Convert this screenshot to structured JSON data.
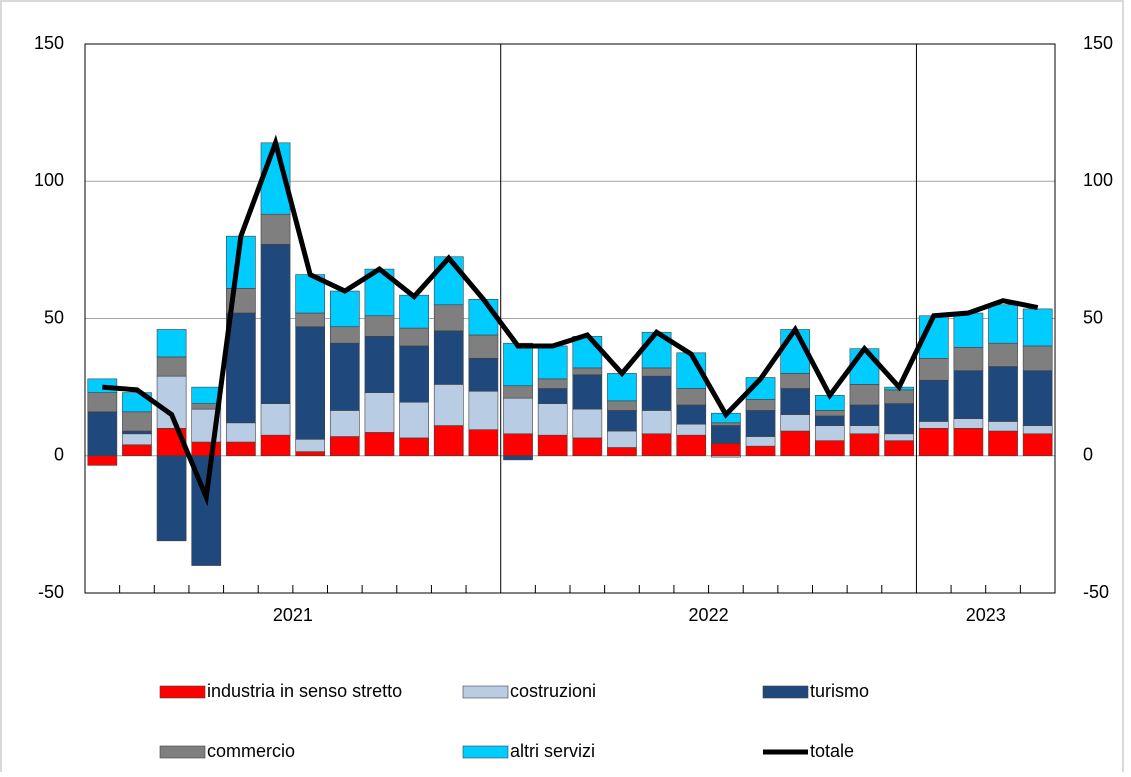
{
  "chart_data": {
    "type": "bar",
    "stacked": true,
    "categories": [
      "2021",
      null,
      null,
      null,
      null,
      null,
      null,
      null,
      null,
      null,
      null,
      null,
      "2022",
      null,
      null,
      null,
      null,
      null,
      null,
      null,
      null,
      null,
      null,
      null,
      "2023",
      null,
      null,
      null
    ],
    "series": [
      {
        "name": "industria in senso stretto",
        "color": "#ff0000",
        "values": [
          -3.5,
          4,
          10,
          5,
          5,
          7.5,
          1.5,
          7,
          8.5,
          6.5,
          11,
          9.5,
          8,
          7.5,
          6.5,
          3,
          8,
          7.5,
          4.5,
          3.5,
          9,
          5.5,
          8,
          5.5,
          10,
          10,
          9,
          8
        ]
      },
      {
        "name": "costruzioni",
        "color": "#b8cce4",
        "values": [
          0,
          4,
          19,
          12,
          7,
          11.5,
          4.5,
          9.5,
          14.5,
          13,
          15,
          14,
          13,
          11.5,
          10.5,
          6,
          8.5,
          4,
          -0.5,
          3.5,
          6,
          5.5,
          3,
          2.5,
          2.5,
          3.5,
          3.5,
          3
        ]
      },
      {
        "name": "turismo",
        "color": "#1f497d",
        "values": [
          16,
          1,
          -31,
          -40,
          40,
          58,
          41,
          24.5,
          20.5,
          20.5,
          19.5,
          12,
          -1.5,
          5.5,
          12.5,
          7.5,
          12.5,
          7,
          6.5,
          9.5,
          9.5,
          3.5,
          7.5,
          11,
          15,
          17.5,
          20,
          20
        ]
      },
      {
        "name": "commercio",
        "color": "#7f7f7f",
        "values": [
          7,
          7,
          7,
          2,
          9,
          11,
          5,
          6,
          7.5,
          6.5,
          9.5,
          8.5,
          4.5,
          3.5,
          2.5,
          3.5,
          3,
          6,
          1,
          4,
          5.5,
          2,
          7.5,
          5,
          8,
          8.5,
          8.5,
          9
        ]
      },
      {
        "name": "altri servizi",
        "color": "#00ccff",
        "values": [
          5,
          7,
          10,
          6,
          19,
          26,
          14,
          13,
          17,
          12,
          17.5,
          13,
          15.5,
          12,
          11.5,
          10,
          13,
          13,
          3.5,
          8,
          16,
          5.5,
          13,
          1,
          15.5,
          12.5,
          14,
          13.5
        ]
      },
      {
        "name": "totale",
        "color": "#000000",
        "type": "line",
        "values": [
          25,
          24,
          15,
          -15,
          80,
          114,
          66,
          60,
          68,
          58,
          72,
          57,
          40,
          40,
          44,
          30,
          45,
          37,
          15,
          28,
          46,
          22,
          39,
          25,
          51,
          52,
          56.5,
          54
        ]
      }
    ],
    "ylim": [
      -50,
      150
    ],
    "yticks": [
      -50,
      0,
      50,
      100,
      150
    ],
    "y2lim": [
      -50,
      150
    ],
    "y2ticks": [
      -50,
      0,
      50,
      100,
      150
    ],
    "grid": true
  }
}
